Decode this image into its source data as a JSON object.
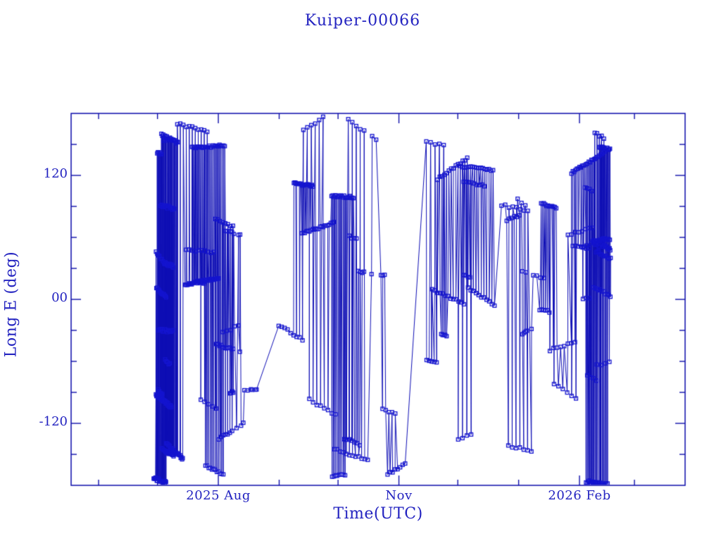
{
  "chart_data": {
    "type": "line",
    "title": "Kuiper-00066",
    "xlabel": "Time(UTC)",
    "ylabel": "Long E (deg)",
    "legend": null,
    "grid": false,
    "marker": "open-square",
    "colors": {
      "frame": "#0d0daa",
      "line": "#0d0db4",
      "marker": "#1414cf",
      "text": "#2323c0",
      "background": "#ffffff"
    },
    "ylim": [
      -180,
      180
    ],
    "y_ticks": [
      {
        "label": "120",
        "value": 120
      },
      {
        "label": "00",
        "value": 0
      },
      {
        "label": "-120",
        "value": -120
      }
    ],
    "y_minor_ticks": [
      -150,
      -90,
      -60,
      -30,
      30,
      60,
      90,
      150
    ],
    "x_axis_epoch": "2025-06-01",
    "xlim_days": [
      -14,
      298.8
    ],
    "x_ticks": [
      {
        "label": "2025 Aug",
        "day": 61
      },
      {
        "label": "Nov",
        "day": 153
      },
      {
        "label": "2026 Feb",
        "day": 245
      }
    ],
    "x_minor_tick_days": [
      0,
      30,
      92,
      122,
      183,
      214,
      273
    ],
    "data_window_days": [
      28,
      261
    ],
    "series_description": "Sub-satellite east longitude vs time; samples drift slowly in longitude between passes and wrap at +/-180 deg, producing dense near-vertical connecting segments with small square sample markers.",
    "synthesis": {
      "seed": 1234567,
      "t_start": 28,
      "t_end": 261,
      "tracks_uniform": 56,
      "tracks_early": 14,
      "tracks_late": 9,
      "sparse_windows": [
        [
          69,
          80
        ],
        [
          136,
          144
        ],
        [
          219,
          223
        ]
      ],
      "sparse_skip": 0.8,
      "lon_min": -178,
      "lon_span": 356,
      "jitter_deg": 1.1
    }
  }
}
